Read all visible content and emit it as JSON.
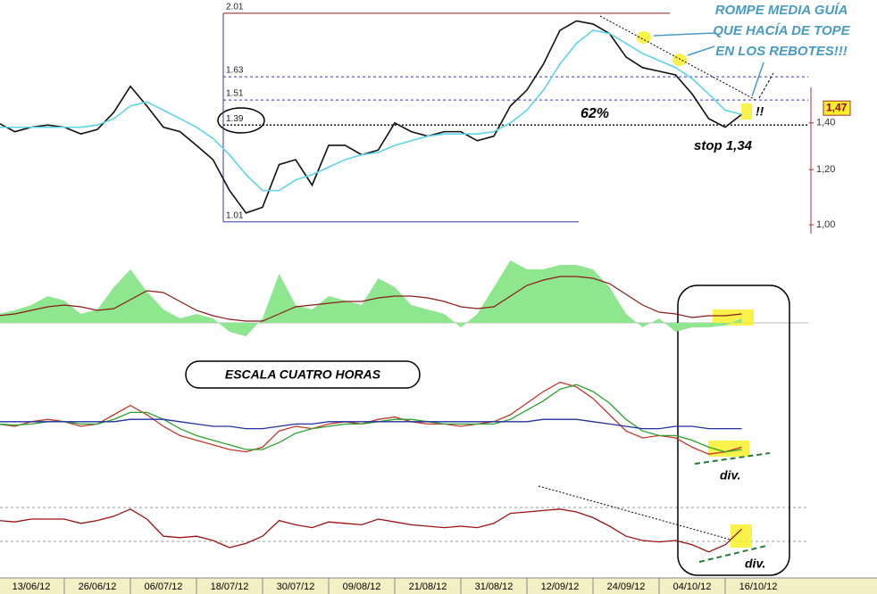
{
  "chart_data": [
    {
      "type": "line",
      "log": true,
      "categories": [
        null,
        null,
        "13/06/12",
        null,
        null,
        null,
        "26/06/12",
        null,
        null,
        null,
        "06/07/12",
        null,
        null,
        null,
        "18/07/12",
        null,
        null,
        null,
        "30/07/12",
        null,
        null,
        null,
        "09/08/12",
        null,
        null,
        null,
        "21/08/12",
        null,
        null,
        null,
        "31/08/12",
        null,
        null,
        null,
        "12/09/12",
        null,
        null,
        null,
        "24/09/12",
        null,
        null,
        null,
        "04/10/12",
        null,
        null,
        null,
        "16/10/12"
      ],
      "series": [
        {
          "color": "#111111",
          "values": [
            1.4,
            1.36,
            1.38,
            1.39,
            1.38,
            1.35,
            1.37,
            1.45,
            1.58,
            1.48,
            1.38,
            1.36,
            1.3,
            1.24,
            1.12,
            1.04,
            1.06,
            1.22,
            1.24,
            1.14,
            1.3,
            1.3,
            1.26,
            1.28,
            1.4,
            1.36,
            1.34,
            1.36,
            1.36,
            1.32,
            1.34,
            1.48,
            1.56,
            1.7,
            1.9,
            1.96,
            1.94,
            1.88,
            1.74,
            1.68,
            1.66,
            1.64,
            1.54,
            1.42,
            1.38,
            1.44,
            null
          ]
        },
        {
          "color": "#5fd3e8",
          "values": [
            1.38,
            1.38,
            1.38,
            1.38,
            1.38,
            1.38,
            1.39,
            1.42,
            1.48,
            1.5,
            1.46,
            1.42,
            1.38,
            1.33,
            1.26,
            1.18,
            1.12,
            1.12,
            1.16,
            1.18,
            1.21,
            1.24,
            1.26,
            1.27,
            1.3,
            1.32,
            1.34,
            1.35,
            1.35,
            1.35,
            1.36,
            1.4,
            1.46,
            1.56,
            1.7,
            1.82,
            1.9,
            1.88,
            1.82,
            1.76,
            1.72,
            1.68,
            1.62,
            1.54,
            1.46,
            1.44,
            null
          ]
        }
      ],
      "ylim": [
        0.96,
        2.1
      ],
      "yticks": [
        {
          "value": 1.0,
          "label": "1,00"
        },
        {
          "value": 1.2,
          "label": "1,20"
        },
        {
          "value": 1.4,
          "label": "1,40"
        }
      ],
      "last_value": {
        "value": 1.47,
        "label": "1,47"
      },
      "fib_levels": [
        2.01,
        1.63,
        1.51,
        1.39,
        1.01
      ],
      "annotations": [
        "ROMPE MEDIA GUÍA",
        "QUE HACÍA DE TOPE",
        "EN LOS REBOTES!!!",
        "62%",
        "stop 1,34",
        "!!"
      ]
    },
    {
      "type": "area",
      "ylim": [
        -20,
        80
      ],
      "series": [
        {
          "color": "#8ee68e",
          "values": [
            10,
            14,
            20,
            30,
            25,
            10,
            15,
            40,
            60,
            35,
            15,
            5,
            10,
            5,
            -10,
            -15,
            5,
            55,
            20,
            15,
            30,
            25,
            20,
            50,
            40,
            20,
            15,
            10,
            -5,
            10,
            40,
            70,
            60,
            60,
            65,
            65,
            60,
            40,
            10,
            -5,
            5,
            -10,
            -5,
            -5,
            -3,
            5,
            null
          ]
        },
        {
          "color": "#8b1a1a",
          "values": [
            8,
            10,
            14,
            18,
            20,
            18,
            14,
            16,
            26,
            36,
            34,
            24,
            14,
            8,
            4,
            2,
            2,
            10,
            18,
            20,
            22,
            24,
            24,
            28,
            30,
            30,
            28,
            24,
            18,
            16,
            18,
            30,
            42,
            48,
            52,
            52,
            50,
            44,
            32,
            20,
            12,
            10,
            6,
            8,
            8,
            10,
            null
          ]
        }
      ]
    },
    {
      "type": "line",
      "ylim": [
        0,
        100
      ],
      "series": [
        {
          "color": "#c0392b",
          "values": [
            42,
            40,
            44,
            46,
            44,
            40,
            42,
            50,
            58,
            50,
            40,
            32,
            28,
            24,
            20,
            18,
            22,
            36,
            40,
            38,
            42,
            44,
            42,
            46,
            48,
            44,
            42,
            42,
            40,
            42,
            44,
            50,
            60,
            70,
            78,
            74,
            64,
            50,
            36,
            30,
            32,
            30,
            22,
            16,
            18,
            22,
            null
          ]
        },
        {
          "color": "#2ca02c",
          "values": [
            42,
            41,
            42,
            44,
            44,
            42,
            42,
            46,
            52,
            52,
            46,
            38,
            32,
            28,
            24,
            20,
            20,
            26,
            34,
            38,
            40,
            42,
            42,
            44,
            46,
            46,
            44,
            42,
            42,
            42,
            42,
            46,
            54,
            62,
            72,
            76,
            70,
            60,
            46,
            36,
            32,
            32,
            28,
            22,
            18,
            20,
            null
          ]
        },
        {
          "color": "#2030a0",
          "values": [
            44,
            44,
            44,
            44,
            44,
            44,
            44,
            44,
            46,
            46,
            46,
            44,
            42,
            40,
            40,
            38,
            38,
            40,
            42,
            42,
            44,
            44,
            44,
            44,
            44,
            44,
            44,
            44,
            44,
            44,
            44,
            44,
            44,
            46,
            46,
            46,
            44,
            42,
            40,
            38,
            38,
            40,
            40,
            38,
            38,
            38,
            null
          ]
        }
      ],
      "annotations": [
        "ESCALA CUATRO HORAS",
        "div."
      ]
    },
    {
      "type": "line",
      "ylim": [
        0,
        100
      ],
      "series": [
        {
          "color": "#9b1111",
          "values": [
            58,
            56,
            60,
            60,
            60,
            54,
            58,
            64,
            74,
            60,
            36,
            34,
            36,
            30,
            20,
            26,
            36,
            58,
            52,
            48,
            56,
            54,
            52,
            60,
            56,
            52,
            50,
            48,
            50,
            48,
            54,
            68,
            70,
            72,
            74,
            70,
            62,
            50,
            36,
            30,
            28,
            30,
            24,
            14,
            24,
            46,
            null
          ]
        }
      ],
      "annotations": [
        "div."
      ]
    }
  ]
}
